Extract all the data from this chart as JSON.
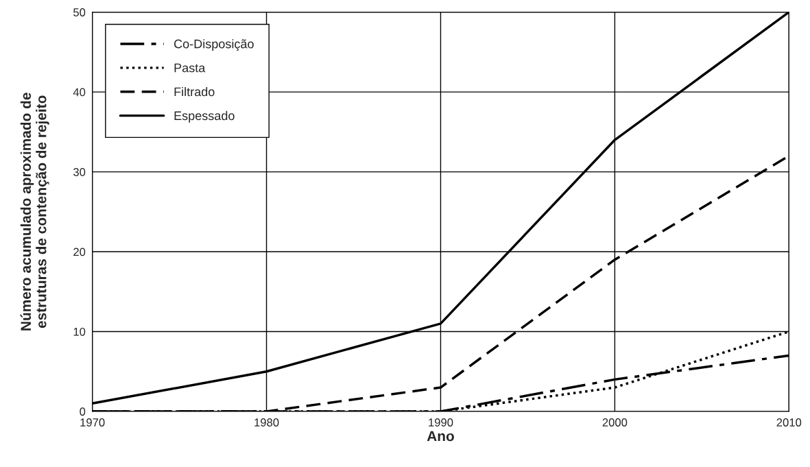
{
  "chart_data": {
    "type": "line",
    "xlabel": "Ano",
    "ylabel": "Número acumulado aproximado de\nestruturas de contenção de rejeito",
    "x": [
      1970,
      1980,
      1990,
      2000,
      2010
    ],
    "series": [
      {
        "name": "Co-Disposição",
        "color": "#000000",
        "line_style": "dashdot",
        "values": [
          0,
          0,
          0,
          4,
          7
        ]
      },
      {
        "name": "Pasta",
        "color": "#000000",
        "line_style": "dotted",
        "values": [
          0,
          0,
          0,
          3,
          10
        ]
      },
      {
        "name": "Filtrado",
        "color": "#000000",
        "line_style": "dashed",
        "values": [
          0,
          0,
          3,
          19,
          32
        ]
      },
      {
        "name": "Espessado",
        "color": "#000000",
        "line_style": "solid",
        "values": [
          1,
          5,
          11,
          34,
          50
        ]
      }
    ],
    "xlim": [
      1970,
      2010
    ],
    "xticks": [
      1970,
      1980,
      1990,
      2000,
      2010
    ],
    "ylim": [
      0,
      50
    ],
    "yticks": [
      0,
      10,
      20,
      30,
      40,
      50
    ],
    "grid": true,
    "legend": "top left",
    "marker": "none"
  }
}
